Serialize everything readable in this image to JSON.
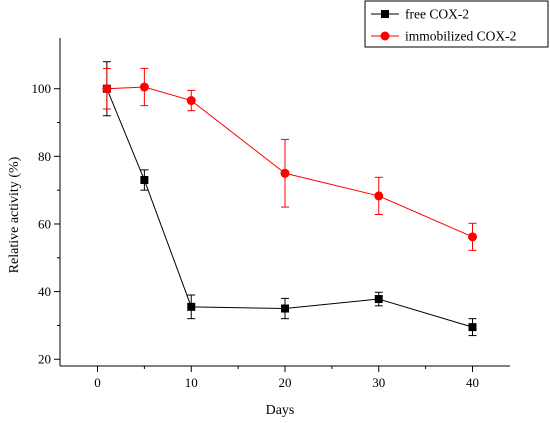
{
  "chart_data": {
    "type": "line",
    "title": "",
    "xlabel": "Days",
    "ylabel": "Relative activity (%)",
    "xlim": [
      -4,
      44
    ],
    "ylim": [
      18,
      115
    ],
    "x_ticks": [
      0,
      10,
      20,
      30,
      40
    ],
    "y_ticks": [
      20,
      40,
      60,
      80,
      100
    ],
    "legend_position": "top-right",
    "series": [
      {
        "name": "free COX-2",
        "color": "#000000",
        "marker": "square",
        "x": [
          1,
          5,
          10,
          20,
          30,
          40
        ],
        "y": [
          100,
          73,
          35.5,
          35,
          37.8,
          29.5
        ],
        "error": [
          8,
          3,
          3.5,
          3,
          2,
          2.5
        ]
      },
      {
        "name": "immobilized COX-2",
        "color": "#ff0000",
        "marker": "circle",
        "x": [
          1,
          5,
          10,
          20,
          30,
          40
        ],
        "y": [
          100,
          100.5,
          96.5,
          75,
          68.3,
          56.2
        ],
        "error": [
          6,
          5.5,
          3,
          10,
          5.5,
          4
        ]
      }
    ]
  }
}
